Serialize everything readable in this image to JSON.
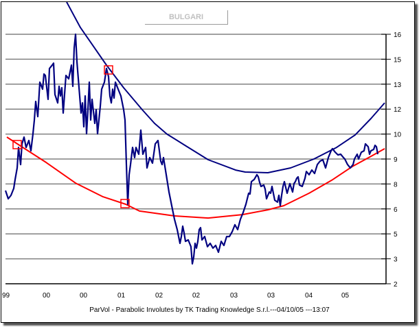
{
  "chart_data": {
    "type": "line",
    "title": "BULGARI",
    "footer": "ParVol - Parabolic Involutes by TK Trading Knowledge S.r.l.---04/10/05 ---13:07",
    "xlabel": "",
    "ylabel": "",
    "x_unit": "period index",
    "xlim": [
      0,
      554
    ],
    "ylim": [
      2,
      16
    ],
    "grid": true,
    "y_axis_side": "right",
    "y_ticks": [
      {
        "value": 16.0,
        "label": "16"
      },
      {
        "value": 14.6,
        "label": "15"
      },
      {
        "value": 13.2,
        "label": "13"
      },
      {
        "value": 11.8,
        "label": "12"
      },
      {
        "value": 10.4,
        "label": "10"
      },
      {
        "value": 9.0,
        "label": "9"
      },
      {
        "value": 7.6,
        "label": "8"
      },
      {
        "value": 6.2,
        "label": "6"
      },
      {
        "value": 4.8,
        "label": "5"
      },
      {
        "value": 3.4,
        "label": "3"
      },
      {
        "value": 2.0,
        "label": "2"
      }
    ],
    "x_ticks": [
      {
        "value": -5,
        "label": "99"
      },
      {
        "value": 54,
        "label": "00"
      },
      {
        "value": 108,
        "label": "00"
      },
      {
        "value": 163,
        "label": "01"
      },
      {
        "value": 218,
        "label": "02"
      },
      {
        "value": 272,
        "label": "02"
      },
      {
        "value": 327,
        "label": "03"
      },
      {
        "value": 381,
        "label": "03"
      },
      {
        "value": 436,
        "label": "04"
      },
      {
        "value": 489,
        "label": "05"
      }
    ],
    "colors": {
      "price": "#000080",
      "upper_involute": "#000080",
      "lower_involute": "#ff0000",
      "marker": "#ff0000",
      "grid": "#808080"
    },
    "series": [
      {
        "name": "price",
        "points": [
          [
            0,
            7.23
          ],
          [
            4,
            6.77
          ],
          [
            8,
            6.96
          ],
          [
            12,
            7.35
          ],
          [
            14,
            7.85
          ],
          [
            17,
            8.5
          ],
          [
            19,
            9.65
          ],
          [
            22,
            8.69
          ],
          [
            24,
            9.85
          ],
          [
            27,
            10.23
          ],
          [
            30,
            9.65
          ],
          [
            34,
            10.04
          ],
          [
            37,
            9.46
          ],
          [
            40,
            10.42
          ],
          [
            42,
            11.19
          ],
          [
            44,
            12.23
          ],
          [
            47,
            11.38
          ],
          [
            50,
            13.31
          ],
          [
            54,
            12.92
          ],
          [
            56,
            13.77
          ],
          [
            58,
            13.69
          ],
          [
            62,
            12.35
          ],
          [
            64,
            14.08
          ],
          [
            68,
            14.27
          ],
          [
            70,
            14.38
          ],
          [
            72,
            12.62
          ],
          [
            76,
            12.15
          ],
          [
            78,
            13.08
          ],
          [
            80,
            12.54
          ],
          [
            82,
            13.0
          ],
          [
            84,
            11.58
          ],
          [
            88,
            13.69
          ],
          [
            92,
            13.5
          ],
          [
            96,
            14.27
          ],
          [
            98,
            13.08
          ],
          [
            100,
            15.23
          ],
          [
            102,
            16.0
          ],
          [
            104,
            14.46
          ],
          [
            106,
            13.5
          ],
          [
            110,
            11.58
          ],
          [
            112,
            12.15
          ],
          [
            114,
            10.81
          ],
          [
            116,
            12.54
          ],
          [
            118,
            10.42
          ],
          [
            120,
            11.77
          ],
          [
            122,
            13.31
          ],
          [
            124,
            11.19
          ],
          [
            126,
            12.35
          ],
          [
            130,
            11.0
          ],
          [
            132,
            11.77
          ],
          [
            134,
            10.42
          ],
          [
            138,
            11.96
          ],
          [
            140,
            12.92
          ],
          [
            144,
            13.31
          ],
          [
            147,
            14.08
          ],
          [
            150,
            13.62
          ],
          [
            152,
            12.54
          ],
          [
            154,
            12.15
          ],
          [
            156,
            12.92
          ],
          [
            158,
            12.42
          ],
          [
            160,
            13.31
          ],
          [
            164,
            12.92
          ],
          [
            168,
            12.54
          ],
          [
            172,
            11.77
          ],
          [
            174,
            11.19
          ],
          [
            176,
            8.69
          ],
          [
            178,
            6.46
          ],
          [
            180,
            8.12
          ],
          [
            182,
            8.69
          ],
          [
            185,
            9.65
          ],
          [
            188,
            9.08
          ],
          [
            190,
            9.65
          ],
          [
            194,
            9.27
          ],
          [
            197,
            10.62
          ],
          [
            200,
            9.27
          ],
          [
            204,
            9.65
          ],
          [
            206,
            8.5
          ],
          [
            210,
            9.08
          ],
          [
            214,
            8.77
          ],
          [
            218,
            9.85
          ],
          [
            222,
            10.04
          ],
          [
            224,
            9.46
          ],
          [
            226,
            8.88
          ],
          [
            228,
            8.69
          ],
          [
            230,
            9.08
          ],
          [
            234,
            8.12
          ],
          [
            238,
            7.15
          ],
          [
            240,
            6.77
          ],
          [
            242,
            6.38
          ],
          [
            246,
            5.62
          ],
          [
            250,
            5.04
          ],
          [
            254,
            4.27
          ],
          [
            256,
            4.65
          ],
          [
            258,
            5.23
          ],
          [
            260,
            4.85
          ],
          [
            262,
            4.38
          ],
          [
            266,
            4.46
          ],
          [
            270,
            4.08
          ],
          [
            272,
            3.12
          ],
          [
            274,
            3.5
          ],
          [
            276,
            4.27
          ],
          [
            278,
            4.0
          ],
          [
            280,
            4.38
          ],
          [
            282,
            5.04
          ],
          [
            284,
            5.15
          ],
          [
            286,
            4.46
          ],
          [
            290,
            4.65
          ],
          [
            294,
            4.08
          ],
          [
            298,
            4.27
          ],
          [
            302,
            4.0
          ],
          [
            306,
            4.15
          ],
          [
            310,
            3.77
          ],
          [
            314,
            4.38
          ],
          [
            318,
            4.15
          ],
          [
            322,
            4.65
          ],
          [
            326,
            4.65
          ],
          [
            330,
            4.92
          ],
          [
            334,
            5.31
          ],
          [
            338,
            5.04
          ],
          [
            342,
            5.62
          ],
          [
            346,
            6.0
          ],
          [
            350,
            6.46
          ],
          [
            354,
            7.08
          ],
          [
            356,
            7.04
          ],
          [
            358,
            7.73
          ],
          [
            362,
            7.85
          ],
          [
            366,
            8.12
          ],
          [
            368,
            8.0
          ],
          [
            370,
            7.69
          ],
          [
            372,
            7.46
          ],
          [
            376,
            7.54
          ],
          [
            378,
            7.31
          ],
          [
            380,
            6.77
          ],
          [
            384,
            7.15
          ],
          [
            386,
            7.08
          ],
          [
            388,
            7.46
          ],
          [
            392,
            6.69
          ],
          [
            396,
            6.58
          ],
          [
            398,
            6.96
          ],
          [
            400,
            6.38
          ],
          [
            402,
            6.96
          ],
          [
            404,
            7.46
          ],
          [
            406,
            7.73
          ],
          [
            410,
            7.08
          ],
          [
            414,
            7.62
          ],
          [
            418,
            7.15
          ],
          [
            420,
            7.62
          ],
          [
            422,
            7.73
          ],
          [
            424,
            7.92
          ],
          [
            426,
            8.0
          ],
          [
            428,
            7.54
          ],
          [
            432,
            7.46
          ],
          [
            436,
            7.92
          ],
          [
            438,
            8.3
          ],
          [
            442,
            8.12
          ],
          [
            446,
            8.38
          ],
          [
            450,
            8.19
          ],
          [
            454,
            8.69
          ],
          [
            458,
            8.88
          ],
          [
            462,
            8.96
          ],
          [
            466,
            8.5
          ],
          [
            470,
            9.08
          ],
          [
            474,
            9.46
          ],
          [
            476,
            9.58
          ],
          [
            480,
            9.38
          ],
          [
            484,
            9.23
          ],
          [
            488,
            9.27
          ],
          [
            492,
            9.08
          ],
          [
            494,
            9.0
          ],
          [
            498,
            8.69
          ],
          [
            502,
            8.5
          ],
          [
            506,
            8.69
          ],
          [
            508,
            9.0
          ],
          [
            512,
            9.27
          ],
          [
            514,
            9.0
          ],
          [
            518,
            9.38
          ],
          [
            522,
            9.46
          ],
          [
            524,
            9.85
          ],
          [
            528,
            9.69
          ],
          [
            530,
            9.27
          ],
          [
            532,
            9.46
          ],
          [
            536,
            9.54
          ],
          [
            538,
            9.77
          ],
          [
            540,
            9.69
          ],
          [
            542,
            9.27
          ]
        ]
      },
      {
        "name": "upper_involute",
        "points": [
          [
            89,
            17.81
          ],
          [
            109,
            16.38
          ],
          [
            147,
            14.27
          ],
          [
            172,
            13.0
          ],
          [
            199,
            11.77
          ],
          [
            217,
            11.0
          ],
          [
            235,
            10.4
          ],
          [
            262,
            9.75
          ],
          [
            295,
            8.96
          ],
          [
            335,
            8.38
          ],
          [
            349,
            8.27
          ],
          [
            382,
            8.23
          ],
          [
            415,
            8.5
          ],
          [
            449,
            9.0
          ],
          [
            482,
            9.65
          ],
          [
            509,
            10.35
          ],
          [
            532,
            11.27
          ],
          [
            552,
            12.15
          ]
        ]
      },
      {
        "name": "lower_involute",
        "points": [
          [
            2,
            10.23
          ],
          [
            22,
            9.73
          ],
          [
            59,
            8.81
          ],
          [
            102,
            7.65
          ],
          [
            142,
            6.88
          ],
          [
            175,
            6.46
          ],
          [
            195,
            6.08
          ],
          [
            245,
            5.81
          ],
          [
            295,
            5.69
          ],
          [
            345,
            5.88
          ],
          [
            382,
            6.15
          ],
          [
            405,
            6.38
          ],
          [
            442,
            7.08
          ],
          [
            475,
            7.81
          ],
          [
            505,
            8.58
          ],
          [
            532,
            9.15
          ],
          [
            552,
            9.58
          ]
        ]
      }
    ],
    "markers": [
      [
        17,
        9.81
      ],
      [
        150,
        14.0
      ],
      [
        174,
        6.5
      ]
    ]
  }
}
